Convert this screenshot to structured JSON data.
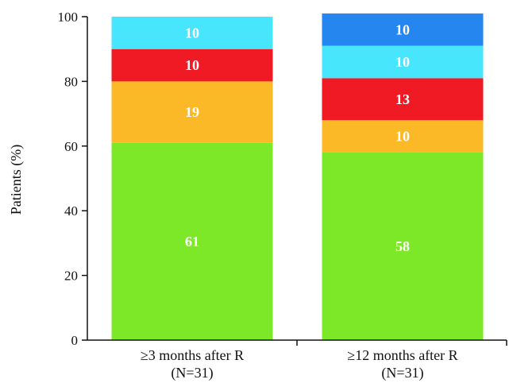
{
  "chart_data": {
    "type": "bar",
    "stacked": true,
    "title": "",
    "xlabel": "",
    "ylabel": "Patients (%)",
    "ylim": [
      0,
      100
    ],
    "yticks": [
      "0",
      "20",
      "40",
      "60",
      "80",
      "100"
    ],
    "grid": false,
    "legend": "none",
    "categories": [
      [
        "≥3 months after R",
        "(N=31)"
      ],
      [
        "≥12 months after R",
        "(N=31)"
      ]
    ],
    "series": [
      {
        "color": "#7de827",
        "values": [
          61,
          58
        ]
      },
      {
        "color": "#fbb928",
        "values": [
          19,
          10
        ]
      },
      {
        "color": "#f01a24",
        "values": [
          10,
          13
        ]
      },
      {
        "color": "#48e6fd",
        "values": [
          10,
          10
        ]
      },
      {
        "color": "#2486ee",
        "values": [
          0,
          10
        ]
      }
    ]
  }
}
